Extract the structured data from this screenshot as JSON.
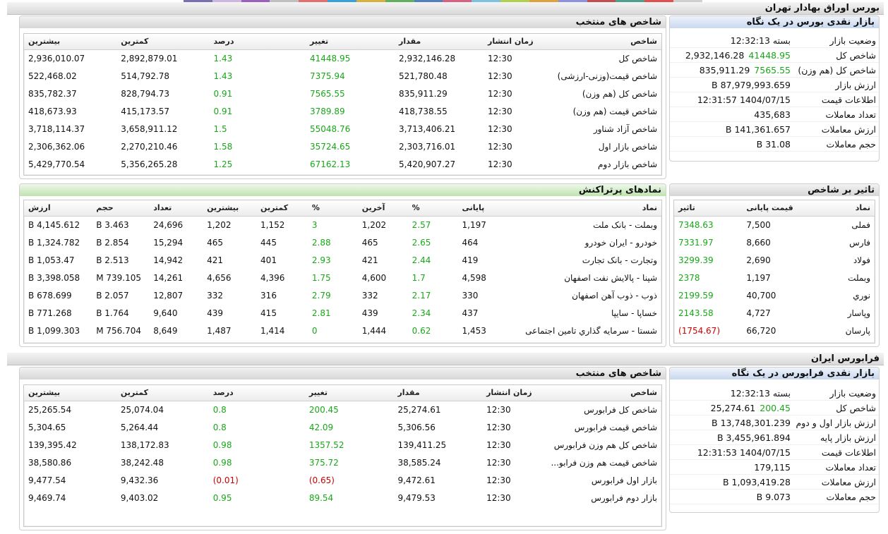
{
  "top_strip_colors": [
    "#7a6fb0",
    "#cdb6e0",
    "#9b5fc0",
    "#c0c0c0",
    "#e07070",
    "#3aa0d8",
    "#d8b040",
    "#60b060",
    "#5080c0",
    "#d86080",
    "#80c0e0",
    "#b0d050",
    "#e0a040",
    "#9090e0",
    "#c05050",
    "#50a090",
    "#e05050",
    "#d0d0d0"
  ],
  "bourse": {
    "section_title": "بورس اوراق بهادار تهران",
    "glance": {
      "title": "بازار نقدی بورس در یک نگاه",
      "rows": [
        {
          "label": "وضعیت بازار",
          "value": "بسته 12:32:13",
          "change": ""
        },
        {
          "label": "شاخص کل",
          "value": "2,932,146.28",
          "change": "41448.95"
        },
        {
          "label": "شاخص کل (هم وزن)",
          "value": "835,911.29",
          "change": "7565.55"
        },
        {
          "label": "ارزش بازار",
          "value": "87,979,993.659 B",
          "change": ""
        },
        {
          "label": "اطلاعات قیمت",
          "value": "1404/07/15 12:31:57",
          "change": ""
        },
        {
          "label": "تعداد معاملات",
          "value": "435,683",
          "change": ""
        },
        {
          "label": "ارزش معاملات",
          "value": "141,361.657 B",
          "change": ""
        },
        {
          "label": "حجم معاملات",
          "value": "31.08 B",
          "change": ""
        }
      ]
    },
    "indices": {
      "title": "شاخص های منتخب",
      "headers": [
        "شاخص",
        "زمان انتشار",
        "مقدار",
        "تغییر",
        "درصد",
        "کمترین",
        "بیشترین"
      ],
      "rows": [
        [
          "شاخص کل",
          "12:30",
          "2,932,146.28",
          "41448.95",
          "1.43",
          "2,892,879.01",
          "2,936,010.07"
        ],
        [
          "شاخص قیمت(وزنی-ارزشی)",
          "12:30",
          "521,780.48",
          "7375.94",
          "1.43",
          "514,792.78",
          "522,468.02"
        ],
        [
          "شاخص کل (هم وزن)",
          "12:30",
          "835,911.29",
          "7565.55",
          "0.91",
          "828,794.73",
          "835,782.37"
        ],
        [
          "شاخص قیمت (هم وزن)",
          "12:30",
          "418,738.55",
          "3789.89",
          "0.91",
          "415,173.57",
          "418,673.93"
        ],
        [
          "شاخص آزاد شناور",
          "12:30",
          "3,713,406.21",
          "55048.76",
          "1.5",
          "3,658,911.12",
          "3,718,114.37"
        ],
        [
          "شاخص بازار اول",
          "12:30",
          "2,303,716.01",
          "35724.65",
          "1.58",
          "2,270,210.46",
          "2,306,362.06"
        ],
        [
          "شاخص بازار دوم",
          "12:30",
          "5,420,907.27",
          "67162.13",
          "1.25",
          "5,356,265.28",
          "5,429,770.54"
        ]
      ]
    },
    "impact": {
      "title": "تاثیر بر شاخص",
      "headers": [
        "نماد",
        "قیمت پایانی",
        "تاثیر"
      ],
      "rows": [
        [
          "فملی",
          "7,500",
          "7348.63"
        ],
        [
          "فارس",
          "8,660",
          "7331.97"
        ],
        [
          "فولاد",
          "2,690",
          "3299.39"
        ],
        [
          "وبملت",
          "1,197",
          "2378"
        ],
        [
          "نوري",
          "40,700",
          "2199.59"
        ],
        [
          "وپاسار",
          "4,727",
          "2143.58"
        ],
        [
          "پارسان",
          "66,720",
          "(1754.67)"
        ]
      ]
    },
    "busiest": {
      "title": "نمادهای پرتراکنش",
      "headers": [
        "نماد",
        "پایانی",
        "%",
        "آخرین",
        "%",
        "کمترین",
        "بیشترین",
        "تعداد",
        "حجم",
        "ارزش"
      ],
      "rows": [
        [
          "وبملت - بانک ملت",
          "1,197",
          "2.57",
          "1,202",
          "3",
          "1,152",
          "1,202",
          "24,696",
          "3.463 B",
          "4,145.612 B"
        ],
        [
          "خودرو - ایران خودرو",
          "464",
          "2.65",
          "465",
          "2.88",
          "445",
          "465",
          "15,294",
          "2.854 B",
          "1,324.782 B"
        ],
        [
          "وتجارت - بانک تجارت",
          "419",
          "2.44",
          "421",
          "2.93",
          "401",
          "421",
          "14,942",
          "2.513 B",
          "1,053.47 B"
        ],
        [
          "شپنا - پالایش نفت اصفهان",
          "4,598",
          "1.7",
          "4,600",
          "1.75",
          "4,396",
          "4,656",
          "14,261",
          "739.105 M",
          "3,398.058 B"
        ],
        [
          "ذوب - ذوب آهن اصفهان",
          "330",
          "2.17",
          "332",
          "2.79",
          "316",
          "332",
          "12,807",
          "2.057 B",
          "678.699 B"
        ],
        [
          "خساپا - سایپا",
          "437",
          "2.34",
          "439",
          "2.81",
          "415",
          "439",
          "9,640",
          "1.764 B",
          "771.268 B"
        ],
        [
          "شستا - سرمایه گذاري تامین اجتماعی",
          "1,453",
          "0.62",
          "1,444",
          "0",
          "1,414",
          "1,487",
          "8,649",
          "756.704 M",
          "1,099.303 B"
        ]
      ]
    }
  },
  "farabourse": {
    "section_title": "فرابورس ایران",
    "glance": {
      "title": "بازار نقدی فرابورس در یک نگاه",
      "rows": [
        {
          "label": "وضعیت بازار",
          "value": "بسته 12:32:13",
          "change": ""
        },
        {
          "label": "شاخص کل",
          "value": "25,274.61",
          "change": "200.45"
        },
        {
          "label": "ارزش بازار اول و دوم",
          "value": "13,748,301.239 B",
          "change": ""
        },
        {
          "label": "ارزش بازار پایه",
          "value": "3,455,961.894 B",
          "change": ""
        },
        {
          "label": "اطلاعات قیمت",
          "value": "1404/07/15 12:31:53",
          "change": ""
        },
        {
          "label": "تعداد معاملات",
          "value": "179,115",
          "change": ""
        },
        {
          "label": "ارزش معاملات",
          "value": "1,093,419.28 B",
          "change": ""
        },
        {
          "label": "حجم معاملات",
          "value": "9.073 B",
          "change": ""
        }
      ]
    },
    "indices": {
      "title": "شاخص های منتخب",
      "headers": [
        "شاخص",
        "زمان انتشار",
        "مقدار",
        "تغییر",
        "درصد",
        "کمترین",
        "بیشترین"
      ],
      "rows": [
        [
          "شاخص کل فرابورس",
          "12:30",
          "25,274.61",
          "200.45",
          "0.8",
          "25,074.04",
          "25,265.54"
        ],
        [
          "شاخص قیمت فرابورس",
          "12:30",
          "5,306.56",
          "42.09",
          "0.8",
          "5,264.44",
          "5,304.65"
        ],
        [
          "شاخص کل هم وزن فرابورس",
          "12:30",
          "139,411.25",
          "1357.52",
          "0.98",
          "138,172.83",
          "139,395.42"
        ],
        [
          "شاخص قیمت هم وزن فرابو...",
          "12:30",
          "38,585.24",
          "375.72",
          "0.98",
          "38,242.48",
          "38,580.86"
        ],
        [
          "بازار اول فرابورس",
          "12:30",
          "9,472.61",
          "(0.65)",
          "(0.01)",
          "9,432.36",
          "9,477.54"
        ],
        [
          "بازار دوم فرابورس",
          "12:30",
          "9,479.53",
          "89.54",
          "0.95",
          "9,403.02",
          "9,469.74"
        ]
      ]
    }
  }
}
